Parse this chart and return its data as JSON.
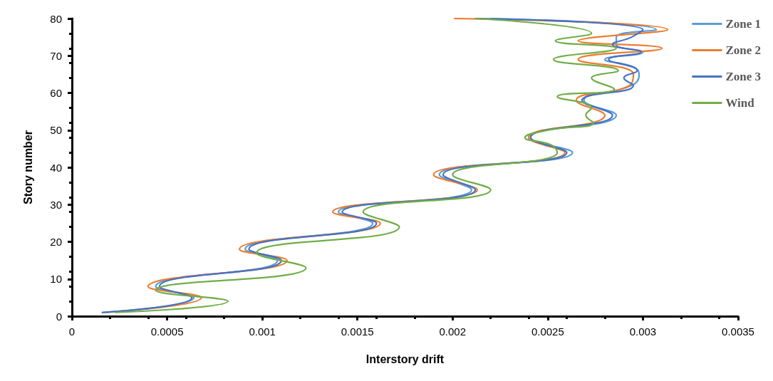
{
  "chart_data": {
    "type": "line",
    "xlabel": "Interstory drift",
    "ylabel": "Story number",
    "xlim": [
      0,
      0.0035
    ],
    "xticks": [
      0,
      0.0005,
      0.001,
      0.0015,
      0.002,
      0.0025,
      0.003,
      0.0035
    ],
    "ylim": [
      0,
      80
    ],
    "yticks": [
      0,
      10,
      20,
      30,
      40,
      50,
      60,
      70,
      80
    ],
    "grid": false,
    "legend": "top right",
    "marker": "none",
    "line_style": "solid",
    "series": [
      {
        "name": "Zone 1",
        "color": "#5b9bd5",
        "x": [
          0.00016,
          0.00064,
          0.00044,
          0.00108,
          0.00091,
          0.00158,
          0.0014,
          0.0021,
          0.00193,
          0.00263,
          0.0024,
          0.00286,
          0.00269,
          0.00294,
          0.00298,
          0.00295,
          0.0028,
          0.003,
          0.00286,
          0.00286,
          0.00307,
          0.0022
        ],
        "values": [
          1,
          5,
          8,
          15,
          18,
          25,
          28,
          34,
          38,
          44,
          48,
          54,
          58,
          62,
          65,
          67,
          69,
          71,
          73,
          75,
          77,
          80
        ]
      },
      {
        "name": "Zone 2",
        "color": "#ed7d31",
        "x": [
          0.00018,
          0.00068,
          0.0004,
          0.00113,
          0.00088,
          0.00162,
          0.00137,
          0.00213,
          0.0019,
          0.00259,
          0.0024,
          0.0028,
          0.00265,
          0.00293,
          0.00295,
          0.00266,
          0.0031,
          0.00266,
          0.00313,
          0.00201
        ],
        "values": [
          1,
          5,
          8,
          15,
          18,
          25,
          28,
          34,
          38,
          44,
          48,
          54,
          58,
          62,
          65,
          69,
          72,
          74,
          77,
          80
        ]
      },
      {
        "name": "Zone 3",
        "color": "#4472c4",
        "x": [
          0.00016,
          0.00063,
          0.00046,
          0.0011,
          0.00093,
          0.0016,
          0.00142,
          0.00212,
          0.00195,
          0.0026,
          0.00241,
          0.00284,
          0.00268,
          0.00295,
          0.0029,
          0.00297,
          0.00282,
          0.00299,
          0.00284,
          0.00294,
          0.003,
          0.00212
        ],
        "values": [
          1,
          5,
          8,
          15,
          18,
          25,
          28,
          34,
          38,
          44,
          48,
          54,
          58,
          62,
          64,
          66,
          69,
          71,
          73,
          75,
          77,
          80
        ]
      },
      {
        "name": "Wind",
        "color": "#70ad47",
        "x": [
          0.00023,
          0.00082,
          0.00044,
          0.00123,
          0.00097,
          0.00172,
          0.00153,
          0.0022,
          0.002,
          0.00255,
          0.00252,
          0.00238,
          0.0025,
          0.00274,
          0.0027,
          0.00273,
          0.00255,
          0.00285,
          0.00273,
          0.00287,
          0.00253,
          0.00286,
          0.00254,
          0.00273,
          0.00212
        ],
        "values": [
          1,
          4,
          7,
          13,
          17,
          24,
          28,
          34,
          38,
          44,
          46,
          48,
          50,
          52,
          54,
          56,
          59,
          61,
          64,
          66,
          69,
          72,
          74,
          76,
          80
        ]
      }
    ]
  }
}
